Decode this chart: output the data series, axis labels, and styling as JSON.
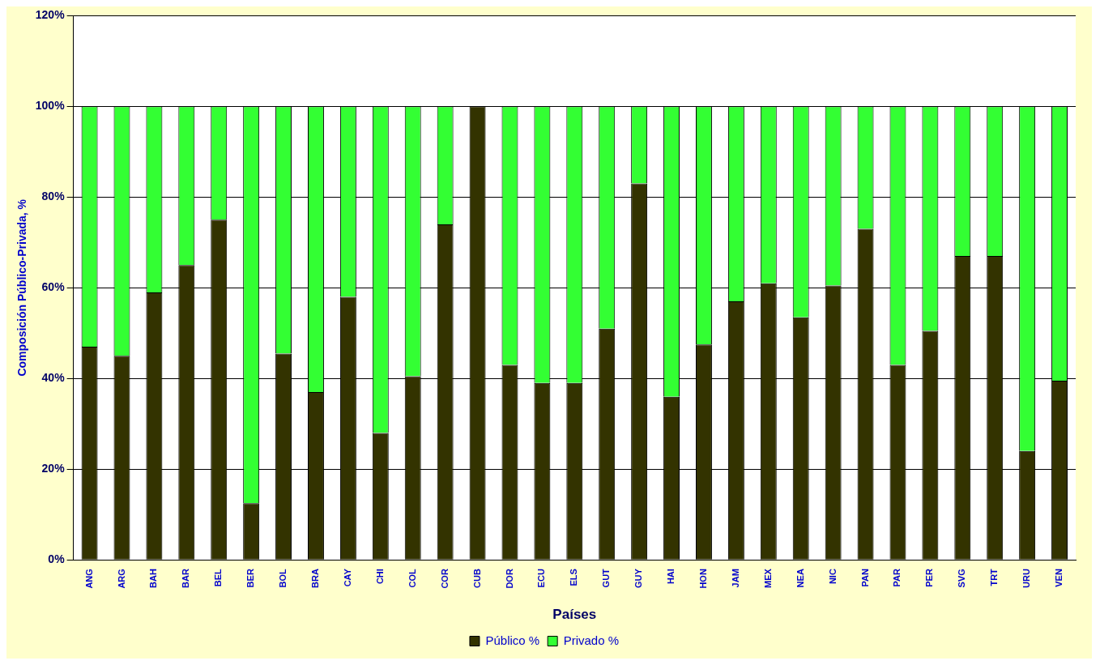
{
  "chart_data": {
    "type": "bar",
    "stacked": true,
    "xlabel": "Países",
    "ylabel": "Composición Público-Privada, %",
    "categories": [
      "ANG",
      "ARG",
      "BAH",
      "BAR",
      "BEL",
      "BER",
      "BOL",
      "BRA",
      "CAY",
      "CHI",
      "COL",
      "COR",
      "CUB",
      "DOR",
      "ECU",
      "ELS",
      "GUT",
      "GUY",
      "HAI",
      "HON",
      "JAM",
      "MEX",
      "NEA",
      "NIC",
      "PAN",
      "PAR",
      "PER",
      "SVG",
      "TRT",
      "URU",
      "VEN"
    ],
    "series": [
      {
        "name": "Público %",
        "color": "#333300",
        "values": [
          47,
          45,
          59,
          65,
          75,
          12.5,
          45.5,
          37,
          58,
          28,
          40.5,
          74,
          100,
          43,
          39,
          39,
          51,
          83,
          36,
          47.5,
          57,
          61,
          53.5,
          60.5,
          73,
          43,
          50.5,
          67,
          67,
          24,
          39.5
        ]
      },
      {
        "name": "Privado %",
        "color": "#33ff33",
        "values": [
          53,
          55,
          41,
          35,
          25,
          87.5,
          54.5,
          63,
          42,
          72,
          59.5,
          26,
          0,
          57,
          61,
          61,
          49,
          17,
          64,
          52.5,
          43,
          39,
          46.5,
          39.5,
          27,
          57,
          49.5,
          33,
          33,
          76,
          60.5
        ]
      }
    ],
    "ylim": [
      0,
      120
    ],
    "yticks": [
      {
        "value": 0,
        "label": "0%"
      },
      {
        "value": 20,
        "label": "20%"
      },
      {
        "value": 40,
        "label": "40%"
      },
      {
        "value": 60,
        "label": "60%"
      },
      {
        "value": 80,
        "label": "80%"
      },
      {
        "value": 100,
        "label": "100%"
      },
      {
        "value": 120,
        "label": "120%"
      }
    ],
    "grid": "y",
    "legend": "bottom"
  }
}
